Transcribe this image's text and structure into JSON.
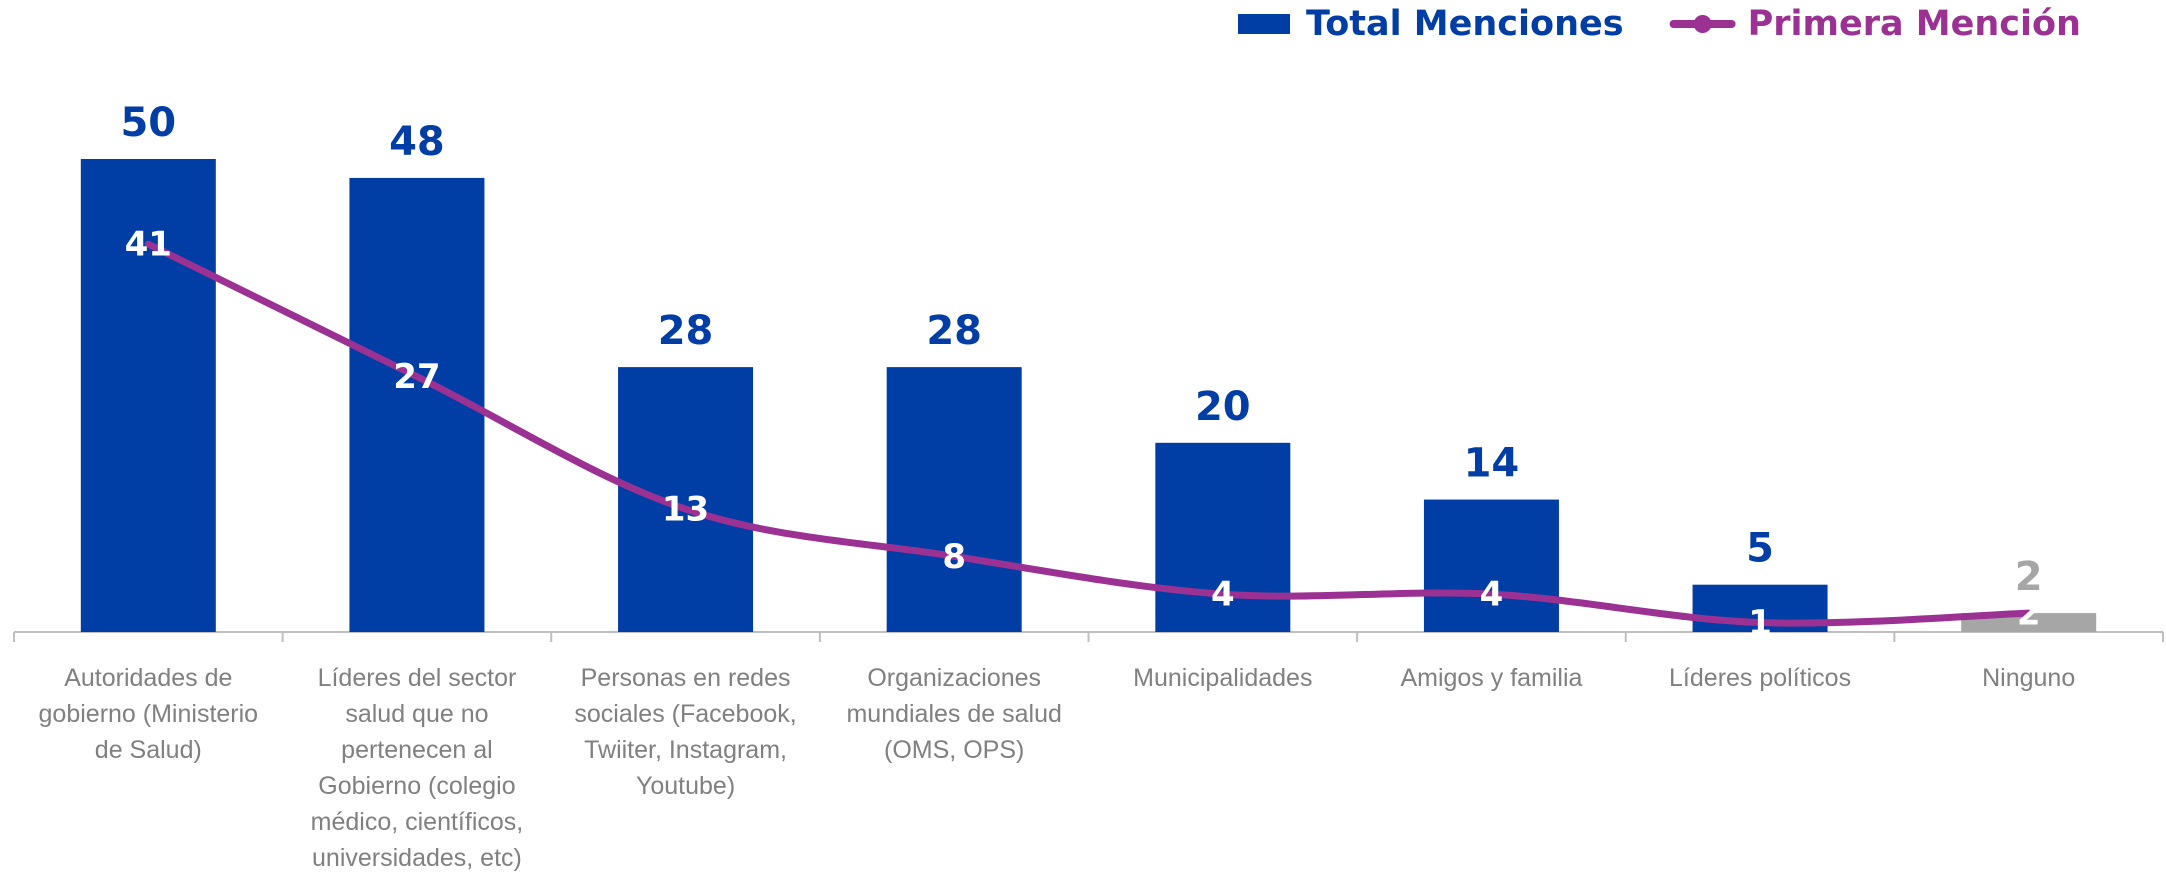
{
  "chart_data": {
    "type": "bar",
    "categories": [
      "Autoridades de gobierno (Ministerio de Salud)",
      "Líderes del sector salud que no pertenecen al Gobierno (colegio médico, científicos, universidades, etc)",
      "Personas en redes sociales (Facebook, Twiiter, Instagram, Youtube)",
      "Organizaciones mundiales de salud (OMS, OPS)",
      "Municipalidades",
      "Amigos y familia",
      "Líderes políticos",
      "Ninguno"
    ],
    "series": [
      {
        "name": "Total Menciones",
        "type": "bar",
        "color": "#003da5",
        "colors": [
          "#003da5",
          "#003da5",
          "#003da5",
          "#003da5",
          "#003da5",
          "#003da5",
          "#003da5",
          "#a6a6a6"
        ],
        "values": [
          50,
          48,
          28,
          28,
          20,
          14,
          5,
          2
        ]
      },
      {
        "name": "Primera Mención",
        "type": "line",
        "color": "#9b3192",
        "values": [
          41,
          27,
          13,
          8,
          4,
          4,
          1,
          2
        ]
      }
    ],
    "ylim": [
      0,
      50
    ],
    "legend": "top-right"
  }
}
